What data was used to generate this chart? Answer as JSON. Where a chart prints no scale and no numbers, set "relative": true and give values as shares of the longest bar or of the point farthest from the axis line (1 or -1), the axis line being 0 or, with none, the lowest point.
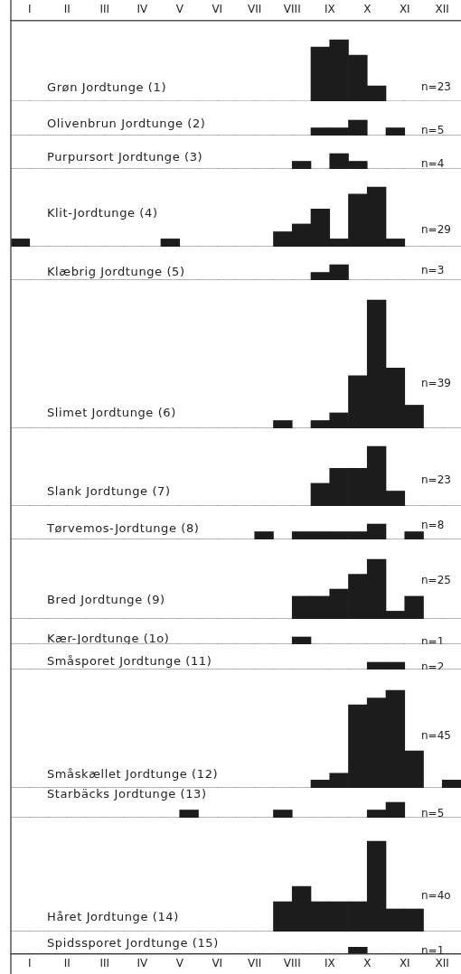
{
  "chart_data": [
    {
      "type": "bar",
      "title": "Grøn Jordtunge (1)",
      "relative": true,
      "annotations": [
        "n=23"
      ],
      "categories": [
        "I",
        "II",
        "III",
        "IV",
        "V",
        "VI",
        "VII",
        "VIII",
        "IX",
        "X",
        "XI",
        "XII"
      ],
      "series": [
        {
          "color": "#1c1c1c",
          "values": [
            0,
            0,
            0,
            0,
            0,
            0,
            0,
            0,
            0.88,
            0.75,
            0,
            0
          ]
        },
        {
          "color": "#1c1c1c",
          "values": [
            0,
            0,
            0,
            0,
            0,
            0,
            0,
            0,
            1,
            0.25,
            0,
            0
          ]
        }
      ]
    },
    {
      "type": "bar",
      "title": "Olivenbrun Jordtunge (2)",
      "relative": true,
      "annotations": [
        "n=5"
      ],
      "categories": [
        null,
        null,
        null,
        null,
        null,
        null,
        null,
        null,
        null,
        null,
        null,
        null
      ],
      "series": [
        {
          "color": "#1c1c1c",
          "values": [
            0,
            0,
            0,
            0,
            0,
            0,
            0,
            0,
            0.5,
            1,
            0.5,
            0
          ]
        },
        {
          "color": "#1c1c1c",
          "values": [
            0,
            0,
            0,
            0,
            0,
            0,
            0,
            0,
            0.5,
            0,
            0,
            0
          ]
        }
      ]
    },
    {
      "type": "bar",
      "title": "Purpursort Jordtunge (3)",
      "relative": true,
      "annotations": [
        "n=4"
      ],
      "categories": [
        null,
        null,
        null,
        null,
        null,
        null,
        null,
        null,
        null,
        null,
        null,
        null
      ],
      "series": [
        {
          "color": "#1c1c1c",
          "values": [
            0,
            0,
            0,
            0,
            0,
            0,
            0,
            0,
            0,
            0.5,
            0,
            0
          ]
        },
        {
          "color": "#1c1c1c",
          "values": [
            0,
            0,
            0,
            0,
            0,
            0,
            0,
            0.5,
            1,
            0,
            0,
            0
          ]
        }
      ]
    },
    {
      "type": "bar",
      "title": "Klit-Jordtunge (4)",
      "relative": true,
      "annotations": [
        "n=29"
      ],
      "categories": [
        null,
        null,
        null,
        null,
        null,
        null,
        null,
        null,
        null,
        null,
        null,
        null
      ],
      "series": [
        {
          "color": "#1c1c1c",
          "values": [
            0.13,
            0,
            0,
            0,
            0.13,
            0,
            0,
            0.25,
            0.63,
            0.88,
            0.13,
            0
          ]
        },
        {
          "color": "#1c1c1c",
          "values": [
            0,
            0,
            0,
            0,
            0,
            0,
            0,
            0.38,
            0.13,
            1,
            0,
            0
          ]
        }
      ]
    },
    {
      "type": "bar",
      "title": "Klæbrig Jordtunge (5)",
      "relative": true,
      "annotations": [
        "n=3"
      ],
      "categories": [
        null,
        null,
        null,
        null,
        null,
        null,
        null,
        null,
        null,
        null,
        null,
        null
      ],
      "series": [
        {
          "color": "#1c1c1c",
          "values": [
            0,
            0,
            0,
            0,
            0,
            0,
            0,
            0,
            0.5,
            0,
            0,
            0
          ]
        },
        {
          "color": "#1c1c1c",
          "values": [
            0,
            0,
            0,
            0,
            0,
            0,
            0,
            0,
            1,
            0,
            0,
            0
          ]
        }
      ]
    },
    {
      "type": "bar",
      "title": "Slimet Jordtunge (6)",
      "relative": true,
      "annotations": [
        "n=39"
      ],
      "categories": [
        null,
        null,
        null,
        null,
        null,
        null,
        null,
        null,
        null,
        null,
        null,
        null
      ],
      "series": [
        {
          "color": "#1c1c1c",
          "values": [
            0,
            0,
            0,
            0,
            0,
            0,
            0,
            0.06,
            0.06,
            0.41,
            0.47,
            0
          ]
        },
        {
          "color": "#1c1c1c",
          "values": [
            0,
            0,
            0,
            0,
            0,
            0,
            0,
            0,
            0.12,
            1,
            0.18,
            0
          ]
        }
      ]
    },
    {
      "type": "bar",
      "title": "Slank Jordtunge (7)",
      "relative": true,
      "annotations": [
        "n=23"
      ],
      "categories": [
        null,
        null,
        null,
        null,
        null,
        null,
        null,
        null,
        null,
        null,
        null,
        null
      ],
      "series": [
        {
          "color": "#1c1c1c",
          "values": [
            0,
            0,
            0,
            0,
            0,
            0,
            0,
            0,
            0.38,
            0.63,
            0.25,
            0
          ]
        },
        {
          "color": "#1c1c1c",
          "values": [
            0,
            0,
            0,
            0,
            0,
            0,
            0,
            0,
            0.63,
            1,
            0,
            0
          ]
        }
      ]
    },
    {
      "type": "bar",
      "title": "Tørvemos-Jordtunge (8)",
      "relative": true,
      "annotations": [
        "n=8"
      ],
      "categories": [
        null,
        null,
        null,
        null,
        null,
        null,
        null,
        null,
        null,
        null,
        null,
        null
      ],
      "series": [
        {
          "color": "#1c1c1c",
          "values": [
            0,
            0,
            0,
            0,
            0,
            0,
            0,
            0,
            0.5,
            0.5,
            0,
            0
          ]
        },
        {
          "color": "#1c1c1c",
          "values": [
            0,
            0,
            0,
            0,
            0,
            0,
            0.5,
            0.5,
            0.5,
            1,
            0.5,
            0
          ]
        }
      ]
    },
    {
      "type": "bar",
      "title": "Bred Jordtunge (9)",
      "relative": true,
      "annotations": [
        "n=25"
      ],
      "categories": [
        null,
        null,
        null,
        null,
        null,
        null,
        null,
        null,
        null,
        null,
        null,
        null
      ],
      "series": [
        {
          "color": "#1c1c1c",
          "values": [
            0,
            0,
            0,
            0,
            0,
            0,
            0,
            0,
            0.38,
            0.75,
            0.13,
            0
          ]
        },
        {
          "color": "#1c1c1c",
          "values": [
            0,
            0,
            0,
            0,
            0,
            0,
            0,
            0.38,
            0.5,
            1,
            0.38,
            0
          ]
        }
      ]
    },
    {
      "type": "bar",
      "title": "Kær-Jordtunge (1o)",
      "relative": true,
      "annotations": [
        "n=1"
      ],
      "categories": [
        null,
        null,
        null,
        null,
        null,
        null,
        null,
        null,
        null,
        null,
        null,
        null
      ],
      "series": [
        {
          "color": "#1c1c1c",
          "values": [
            0,
            0,
            0,
            0,
            0,
            0,
            0,
            0,
            0,
            0,
            0,
            0
          ]
        },
        {
          "color": "#1c1c1c",
          "values": [
            0,
            0,
            0,
            0,
            0,
            0,
            0,
            1,
            0,
            0,
            0,
            0
          ]
        }
      ]
    },
    {
      "type": "bar",
      "title": "Småsporet Jordtunge (11)",
      "relative": true,
      "annotations": [
        "n=2"
      ],
      "categories": [
        null,
        null,
        null,
        null,
        null,
        null,
        null,
        null,
        null,
        null,
        null,
        null
      ],
      "series": [
        {
          "color": "#1c1c1c",
          "values": [
            0,
            0,
            0,
            0,
            0,
            0,
            0,
            0,
            0,
            0,
            1,
            0
          ]
        },
        {
          "color": "#1c1c1c",
          "values": [
            0,
            0,
            0,
            0,
            0,
            0,
            0,
            0,
            0,
            1,
            0,
            0
          ]
        }
      ]
    },
    {
      "type": "bar",
      "title": "Småskællet Jordtunge (12)",
      "relative": true,
      "annotations": [
        "n=45"
      ],
      "categories": [
        null,
        null,
        null,
        null,
        null,
        null,
        null,
        null,
        null,
        null,
        null,
        null
      ],
      "series": [
        {
          "color": "#1c1c1c",
          "values": [
            0,
            0,
            0,
            0,
            0,
            0,
            0,
            0,
            0.08,
            0.85,
            1,
            0
          ]
        },
        {
          "color": "#1c1c1c",
          "values": [
            0,
            0,
            0,
            0,
            0,
            0,
            0,
            0,
            0.15,
            0.92,
            0.38,
            0.08
          ]
        }
      ]
    },
    {
      "type": "bar",
      "title": "Starbäcks Jordtunge (13)",
      "relative": true,
      "annotations": [
        "n=5"
      ],
      "categories": [
        null,
        null,
        null,
        null,
        null,
        null,
        null,
        null,
        null,
        null,
        null,
        null
      ],
      "series": [
        {
          "color": "#1c1c1c",
          "values": [
            0,
            0,
            0,
            0,
            0,
            0,
            0,
            0.5,
            0,
            0,
            1,
            0
          ]
        },
        {
          "color": "#1c1c1c",
          "values": [
            0,
            0,
            0,
            0,
            0.5,
            0,
            0,
            0,
            0,
            0.5,
            0,
            0
          ]
        }
      ]
    },
    {
      "type": "bar",
      "title": "Håret Jordtunge (14)",
      "relative": true,
      "annotations": [
        "n=4o"
      ],
      "categories": [
        null,
        null,
        null,
        null,
        null,
        null,
        null,
        null,
        null,
        null,
        null,
        null
      ],
      "series": [
        {
          "color": "#1c1c1c",
          "values": [
            0,
            0,
            0,
            0,
            0,
            0,
            0,
            0.33,
            0.33,
            0.33,
            0.25,
            0
          ]
        },
        {
          "color": "#1c1c1c",
          "values": [
            0,
            0,
            0,
            0,
            0,
            0,
            0,
            0.5,
            0.33,
            1,
            0.25,
            0
          ]
        }
      ]
    },
    {
      "type": "bar",
      "title": "Spidssporet Jordtunge (15)",
      "relative": true,
      "annotations": [
        "n=1"
      ],
      "categories": [
        "I",
        "II",
        "III",
        "IV",
        "V",
        "VI",
        "VII",
        "VIII",
        "IX",
        "X",
        "XI",
        "XII"
      ],
      "series": [
        {
          "color": "#1c1c1c",
          "values": [
            0,
            0,
            0,
            0,
            0,
            0,
            0,
            0,
            0,
            1,
            0,
            0
          ]
        },
        {
          "color": "#1c1c1c",
          "values": [
            0,
            0,
            0,
            0,
            0,
            0,
            0,
            0,
            0,
            0,
            0,
            0
          ]
        }
      ]
    }
  ]
}
